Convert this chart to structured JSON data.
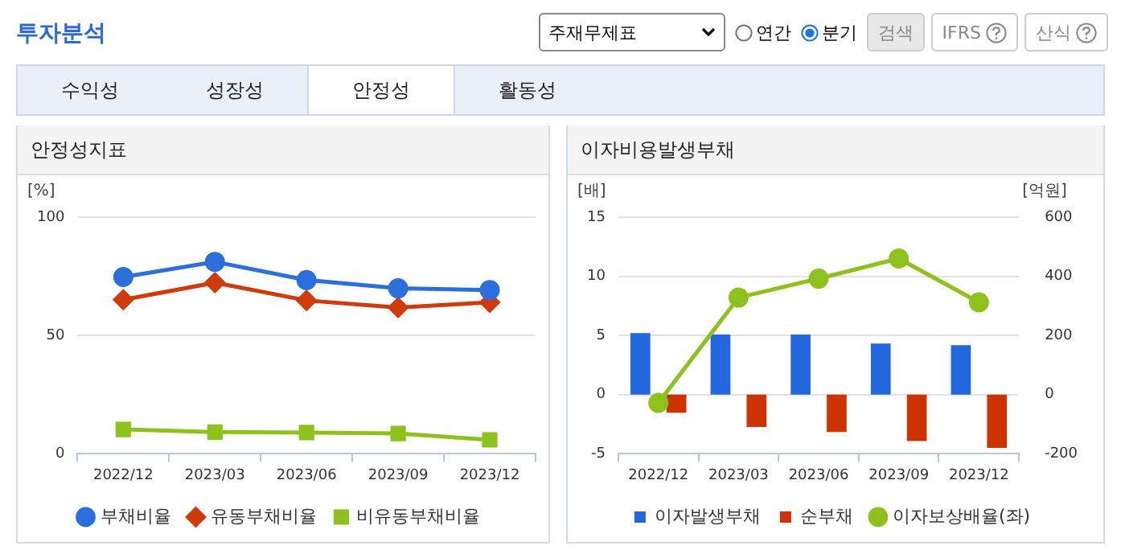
{
  "chart_data": [
    {
      "type": "other",
      "title": "투자분석",
      "annotations": [
        "주재무제표",
        "연간",
        "분기",
        "검색",
        "IFRS",
        "산식",
        "수익성",
        "성장성",
        "안정성",
        "활동성"
      ]
    },
    {
      "type": "line",
      "title": "안정성지표",
      "ylabel": "[%]",
      "categories": [
        "2022/12",
        "2023/03",
        "2023/06",
        "2023/09",
        "2023/12"
      ],
      "ylim": [
        0,
        100
      ],
      "yticks": [
        0,
        50,
        100
      ],
      "grid": "y",
      "legend": "bottom",
      "series": [
        {
          "name": "부채비율",
          "color": "#2a6fdb",
          "marker": "circle",
          "values": [
            74.7,
            81.1,
            73.4,
            69.9,
            69.2
          ]
        },
        {
          "name": "유동부채비율",
          "color": "#d03b0b",
          "marker": "diamond",
          "values": [
            65.1,
            72.3,
            64.8,
            61.8,
            64.0
          ]
        },
        {
          "name": "비유동부채비율",
          "color": "#8cc21b",
          "marker": "square",
          "values": [
            10.3,
            9.2,
            9.0,
            8.6,
            5.9
          ]
        }
      ]
    },
    {
      "type": "bar",
      "title": "이자비용발생부채",
      "ylabel": "[배]",
      "y2label": "[억원]",
      "categories": [
        "2022/12",
        "2023/03",
        "2023/06",
        "2023/09",
        "2023/12"
      ],
      "ylim": [
        -5,
        15
      ],
      "yticks": [
        -5,
        0,
        5,
        10,
        15
      ],
      "y2lim": [
        -200,
        600
      ],
      "y2ticks": [
        -200,
        0,
        200,
        400,
        600
      ],
      "grid": "y",
      "legend": "bottom",
      "series": [
        {
          "name": "이자발생부채",
          "color": "#2267dd",
          "axis": "y2",
          "values": [
            208,
            203,
            203,
            173,
            167
          ]
        },
        {
          "name": "순부채",
          "color": "#cc3300",
          "axis": "y2",
          "values": [
            -61,
            -109,
            -126,
            -157,
            -180
          ]
        },
        {
          "name": "이자보상배율(좌)",
          "type": "line",
          "color": "#8cc21b",
          "axis": "y",
          "marker": "circle",
          "values": [
            -0.7,
            8.2,
            9.8,
            11.5,
            7.8
          ]
        }
      ]
    }
  ]
}
